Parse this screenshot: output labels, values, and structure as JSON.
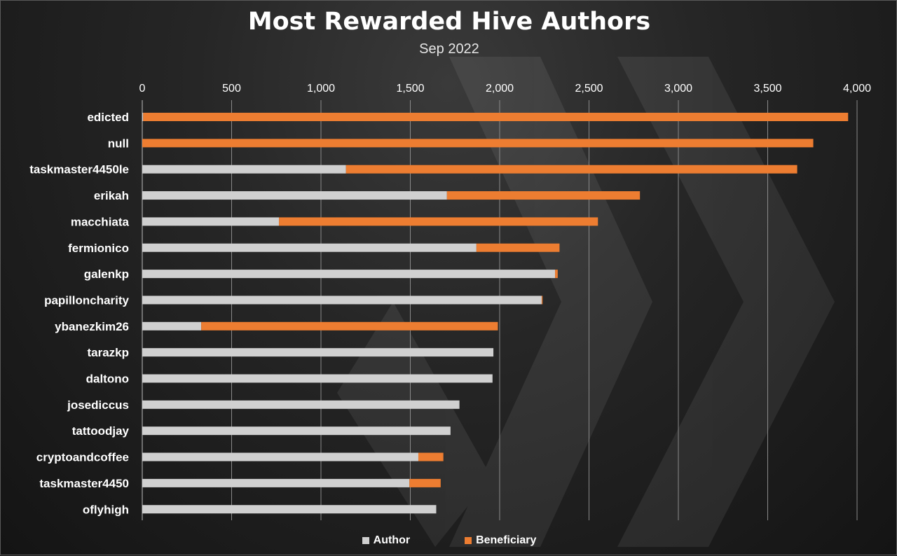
{
  "chart_data": {
    "type": "bar",
    "orientation": "horizontal",
    "stacked": true,
    "title": "Most Rewarded Hive Authors",
    "subtitle": "Sep 2022",
    "categories": [
      "edicted",
      "null",
      "taskmaster4450le",
      "erikah",
      "macchiata",
      "fermionico",
      "galenkp",
      "papilloncharity",
      "ybanezkim26",
      "tarazkp",
      "daltono",
      "josediccus",
      "tattoodjay",
      "cryptoandcoffee",
      "taskmaster4450",
      "oflyhigh"
    ],
    "series": [
      {
        "name": "Author",
        "color": "#d0d0d0",
        "values": [
          5,
          0,
          1140,
          1705,
          765,
          1870,
          2310,
          2235,
          330,
          1965,
          1960,
          1775,
          1725,
          1545,
          1495,
          1645
        ]
      },
      {
        "name": "Beneficiary",
        "color": "#ed7d31",
        "values": [
          3945,
          3755,
          2525,
          1080,
          1785,
          465,
          15,
          5,
          1660,
          0,
          0,
          0,
          0,
          140,
          175,
          0
        ]
      }
    ],
    "xlim": [
      0,
      4000
    ],
    "xticks": [
      "0",
      "500",
      "1,000",
      "1,500",
      "2,000",
      "2,500",
      "3,000",
      "3,500",
      "4,000"
    ],
    "xtick_values": [
      0,
      500,
      1000,
      1500,
      2000,
      2500,
      3000,
      3500,
      4000
    ],
    "x_axis_position": "top",
    "grid": true,
    "legend_position": "bottom",
    "background_color": "#1e1e1e"
  }
}
